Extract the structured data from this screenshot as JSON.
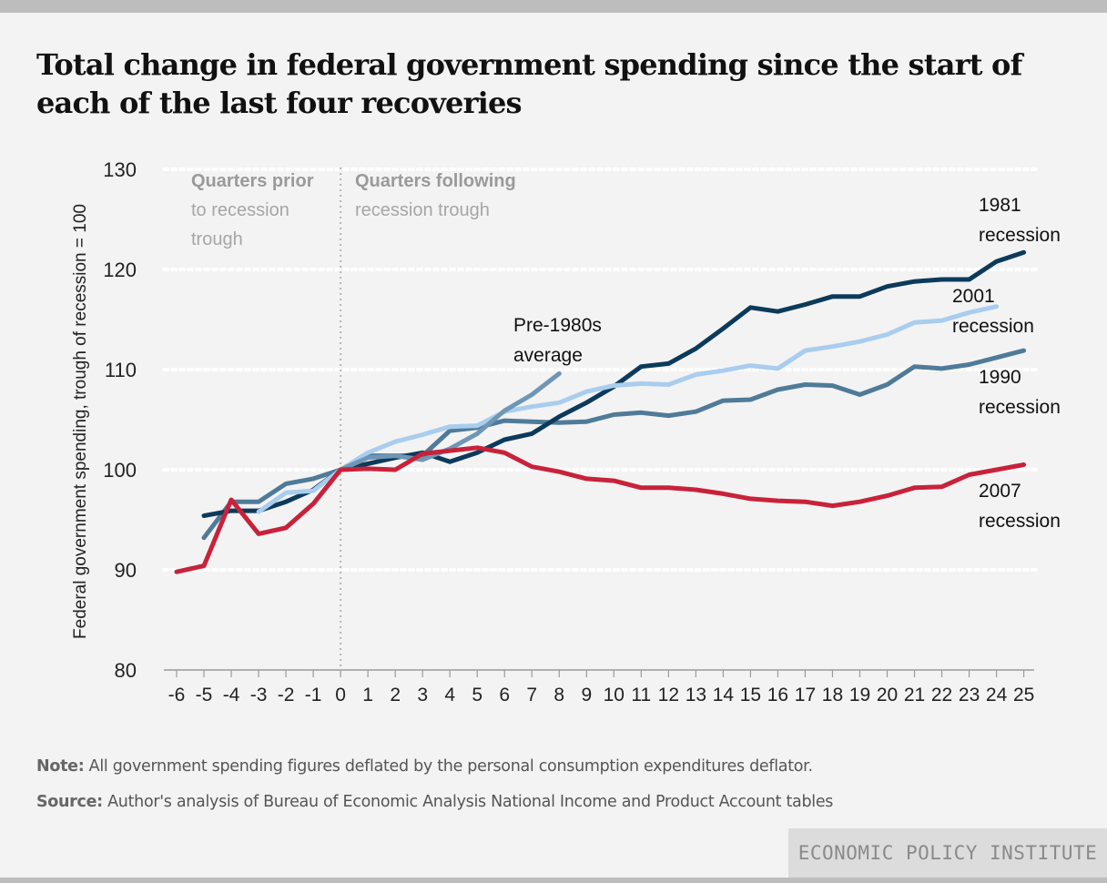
{
  "title": "Total change in federal government spending since the start of each of the last four recoveries",
  "note": {
    "label": "Note:",
    "text": " All government spending figures deflated by the personal consumption expenditures deflator."
  },
  "source": {
    "label": "Source:",
    "text": " Author's analysis of Bureau of Economic Analysis National Income and Product Account tables"
  },
  "brand": "ECONOMIC POLICY INSTITUTE",
  "colors": {
    "background": "#f3f3f3",
    "r1981": "#0c3a5b",
    "r2001": "#a9cdee",
    "r1990": "#4f7b99",
    "pre1980": "#7096b5",
    "r2007": "#c8223a",
    "trough_divider": "#b5b5b5",
    "gridline": "#ffffff"
  },
  "chart_data": {
    "type": "line",
    "xlabel": "",
    "ylabel": "Federal government spending, trough of recession = 100",
    "xlim": [
      -6,
      25
    ],
    "ylim": [
      80,
      130
    ],
    "x_ticks": [
      -6,
      -5,
      -4,
      -3,
      -2,
      -1,
      0,
      1,
      2,
      3,
      4,
      5,
      6,
      7,
      8,
      9,
      10,
      11,
      12,
      13,
      14,
      15,
      16,
      17,
      18,
      19,
      20,
      21,
      22,
      23,
      24,
      25
    ],
    "y_ticks": [
      80,
      90,
      100,
      110,
      120,
      130
    ],
    "grid": "horizontal dotted",
    "annotations": [
      {
        "id": "prior",
        "bold": "Quarters prior",
        "lines": [
          "to recession",
          "trough"
        ]
      },
      {
        "id": "following",
        "bold": "Quarters following",
        "lines": [
          "recession trough"
        ]
      }
    ],
    "series": [
      {
        "key": "r1990",
        "name": "1990 recession",
        "label_lines": [
          "1990",
          "recession"
        ],
        "x": [
          -5,
          -4,
          -3,
          -2,
          -1,
          0,
          1,
          2,
          3,
          4,
          5,
          6,
          7,
          8,
          9,
          10,
          11,
          12,
          13,
          14,
          15,
          16,
          17,
          18,
          19,
          20,
          21,
          22,
          23,
          24,
          25
        ],
        "y": [
          93.2,
          96.8,
          96.8,
          98.6,
          99.1,
          100,
          101.4,
          101.4,
          101.4,
          103.9,
          104.2,
          104.9,
          104.8,
          104.7,
          104.8,
          105.5,
          105.7,
          105.4,
          105.8,
          106.9,
          107.0,
          108.0,
          108.5,
          108.4,
          107.5,
          108.5,
          110.3,
          110.1,
          110.5,
          111.2,
          111.9
        ]
      },
      {
        "key": "r1981",
        "name": "1981 recession",
        "label_lines": [
          "1981",
          "recession"
        ],
        "x": [
          -5,
          -4,
          -3,
          -2,
          -1,
          0,
          1,
          2,
          3,
          4,
          5,
          6,
          7,
          8,
          9,
          10,
          11,
          12,
          13,
          14,
          15,
          16,
          17,
          18,
          19,
          20,
          21,
          22,
          23,
          24,
          25
        ],
        "y": [
          95.4,
          95.9,
          95.9,
          96.8,
          98.0,
          100,
          100.6,
          101.2,
          101.7,
          100.8,
          101.7,
          103.0,
          103.6,
          105.3,
          106.7,
          108.3,
          110.3,
          110.6,
          112.1,
          114.1,
          116.2,
          115.8,
          116.5,
          117.3,
          117.3,
          118.3,
          118.8,
          119.0,
          119.0,
          120.8,
          121.7
        ]
      },
      {
        "key": "r2001",
        "name": "2001 recession",
        "label_lines": [
          "2001",
          "recession"
        ],
        "x": [
          -3,
          -2,
          -1,
          0,
          1,
          2,
          3,
          4,
          5,
          6,
          7,
          8,
          9,
          10,
          11,
          12,
          13,
          14,
          15,
          16,
          17,
          18,
          19,
          20,
          21,
          22,
          23,
          24
        ],
        "y": [
          95.8,
          97.7,
          97.9,
          100,
          101.7,
          102.8,
          103.5,
          104.3,
          104.4,
          105.8,
          106.3,
          106.7,
          107.8,
          108.4,
          108.6,
          108.5,
          109.5,
          109.9,
          110.4,
          110.1,
          111.9,
          112.3,
          112.8,
          113.5,
          114.7,
          114.9,
          115.7,
          116.3
        ]
      },
      {
        "key": "pre1980",
        "name": "Pre-1980s average",
        "label_lines": [
          "Pre-1980s",
          "average"
        ],
        "x": [
          0,
          1,
          2,
          3,
          4,
          5,
          6,
          7,
          8
        ],
        "y": [
          100,
          101.2,
          101.4,
          101.0,
          102.1,
          103.6,
          105.9,
          107.5,
          109.6
        ]
      },
      {
        "key": "r2007",
        "name": "2007 recession",
        "label_lines": [
          "2007",
          "recession"
        ],
        "x": [
          -6,
          -5,
          -4,
          -3,
          -2,
          -1,
          0,
          1,
          2,
          3,
          4,
          5,
          6,
          7,
          8,
          9,
          10,
          11,
          12,
          13,
          14,
          15,
          16,
          17,
          18,
          19,
          20,
          21,
          22,
          23,
          24,
          25
        ],
        "y": [
          89.8,
          90.4,
          97.0,
          93.6,
          94.2,
          96.6,
          100,
          100.1,
          100.0,
          101.6,
          101.9,
          102.2,
          101.7,
          100.3,
          99.8,
          99.1,
          98.9,
          98.2,
          98.2,
          98.0,
          97.6,
          97.1,
          96.9,
          96.8,
          96.4,
          96.8,
          97.4,
          98.2,
          98.3,
          99.5,
          100.0,
          100.5
        ]
      }
    ]
  }
}
